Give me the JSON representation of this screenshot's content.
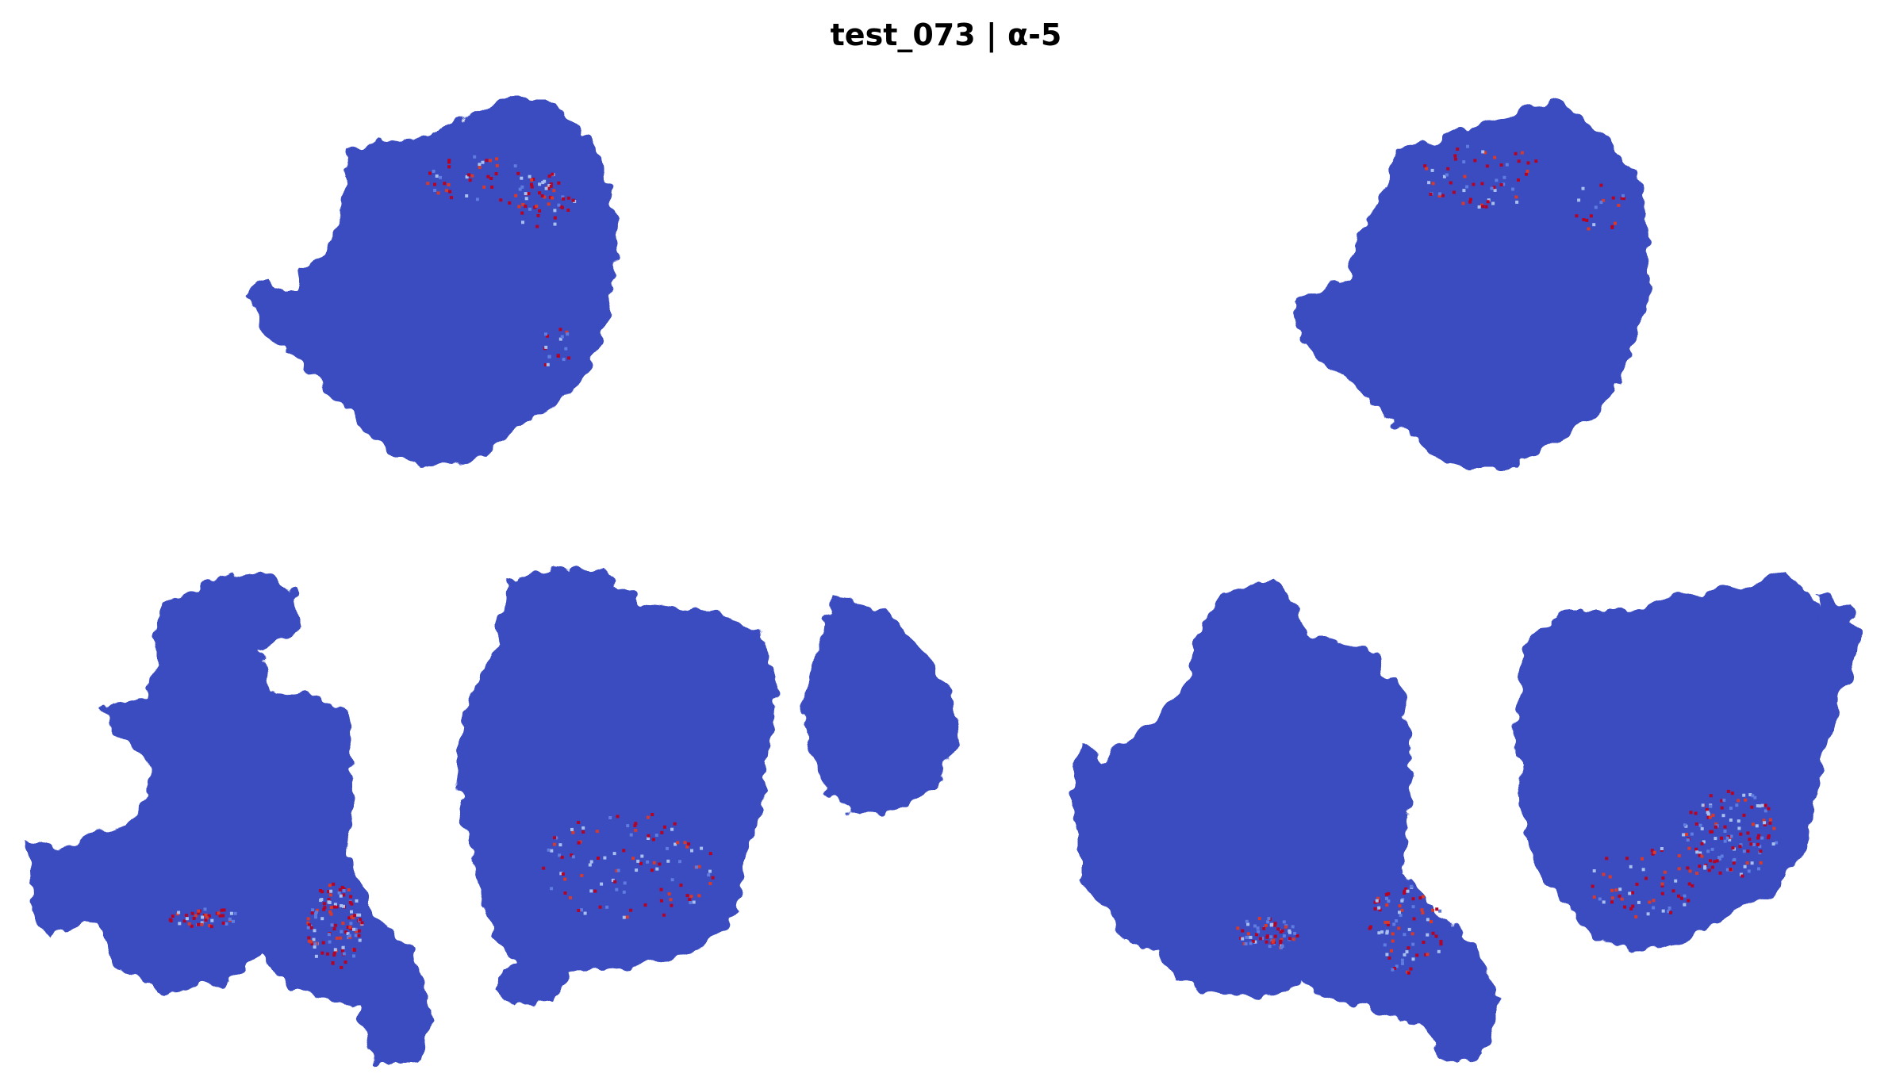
{
  "title": "test_073 | α-5",
  "colors": {
    "tissue": "#3b4cc0",
    "tissue_light": "#5f7ce0",
    "tissue_pale": "#a9c0ef",
    "hot": "#b40426",
    "hot_alt": "#d73a2c",
    "background": "#ffffff"
  },
  "panels": [
    {
      "name": "top-left-section"
    },
    {
      "name": "top-right-section"
    },
    {
      "name": "bottom-left-section-a"
    },
    {
      "name": "bottom-left-section-b"
    },
    {
      "name": "bottom-right-section-a"
    },
    {
      "name": "bottom-right-section-b"
    }
  ]
}
